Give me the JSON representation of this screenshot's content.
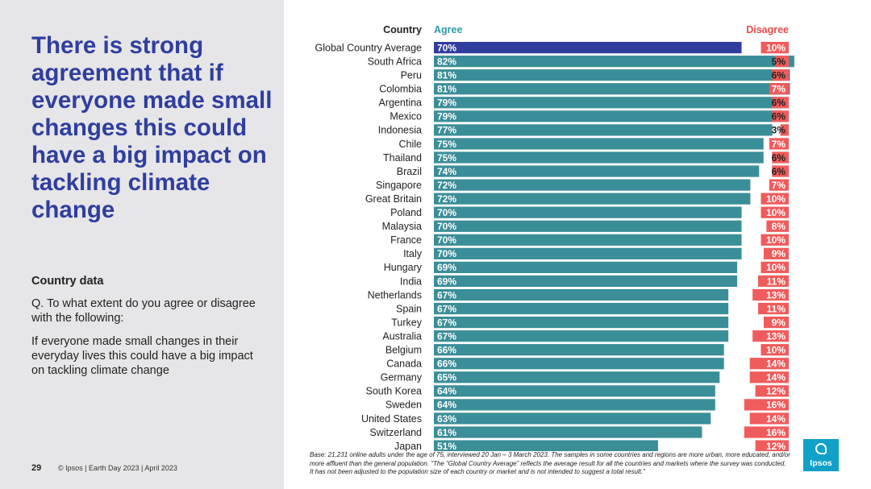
{
  "slide": {
    "headline": "There is strong agreement that if everyone made small changes this could have a big impact on tackling climate change",
    "subhead": "Country data",
    "question": "Q. To what extent do you agree or disagree with the following:",
    "statement": "If everyone made small changes in their everyday lives this could have a big impact on tackling climate change",
    "page_number": "29",
    "footer": "© Ipsos | Earth Day 2023 | April 2023",
    "base_note": "Base: 21,231 online adults under the age of 75, interviewed 20 Jan – 3 March 2023. The samples in some countries and regions are more urban, more educated, and/or more affluent than the general population. “The “Global Country Average” reflects the average result for all the countries and markets where the survey was conducted. It has not been adjusted to the population size of each country or market and is not intended to suggest a total result.”",
    "logo_text": "Ipsos"
  },
  "colors": {
    "agree": "#3a8e98",
    "agree_highlight": "#2f3e9e",
    "disagree": "#f05b5b",
    "agree_header": "#2e9aa7",
    "disagree_header": "#e84b4b"
  },
  "chart_data": {
    "type": "bar",
    "headers": {
      "country": "Country",
      "agree": "Agree",
      "disagree": "Disagree"
    },
    "categories": [
      "Global Country Average",
      "South Africa",
      "Peru",
      "Colombia",
      "Argentina",
      "Mexico",
      "Indonesia",
      "Chile",
      "Thailand",
      "Brazil",
      "Singapore",
      "Great Britain",
      "Poland",
      "Malaysia",
      "France",
      "Italy",
      "Hungary",
      "India",
      "Netherlands",
      "Spain",
      "Turkey",
      "Australia",
      "Belgium",
      "Canada",
      "Germany",
      "South Korea",
      "Sweden",
      "United States",
      "Switzerland",
      "Japan"
    ],
    "series": [
      {
        "name": "Agree",
        "values": [
          70,
          82,
          81,
          81,
          79,
          79,
          77,
          75,
          75,
          74,
          72,
          72,
          70,
          70,
          70,
          70,
          69,
          69,
          67,
          67,
          67,
          67,
          66,
          66,
          65,
          64,
          64,
          63,
          61,
          51
        ]
      },
      {
        "name": "Disagree",
        "values": [
          10,
          5,
          6,
          7,
          6,
          6,
          3,
          7,
          6,
          6,
          7,
          10,
          10,
          8,
          10,
          9,
          10,
          11,
          13,
          11,
          9,
          13,
          10,
          14,
          14,
          12,
          16,
          14,
          16,
          12
        ]
      }
    ],
    "value_format": "percent"
  }
}
